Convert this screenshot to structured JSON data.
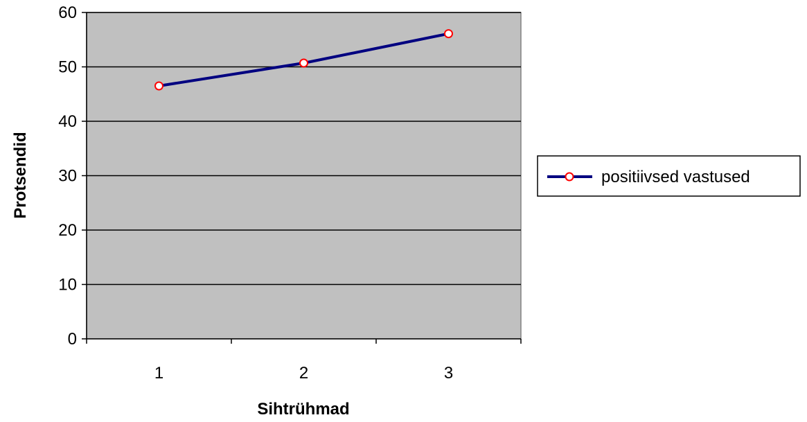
{
  "chart_data": {
    "type": "line",
    "title": "",
    "xlabel": "Sihtrühmad",
    "ylabel": "Protsendid",
    "categories": [
      "1",
      "2",
      "3"
    ],
    "series": [
      {
        "name": "positiivsed vastused",
        "values": [
          46.5,
          50.7,
          56.1
        ]
      }
    ],
    "ylim": [
      0,
      60
    ],
    "yticks": [
      "0",
      "10",
      "20",
      "30",
      "40",
      "50",
      "60"
    ],
    "grid": true,
    "legend_position": "right",
    "colors": {
      "plot_background": "#c0c0c0",
      "line": "#000080",
      "marker_edge": "#ff0000",
      "marker_fill": "#ffffff",
      "gridline": "#000000"
    }
  }
}
